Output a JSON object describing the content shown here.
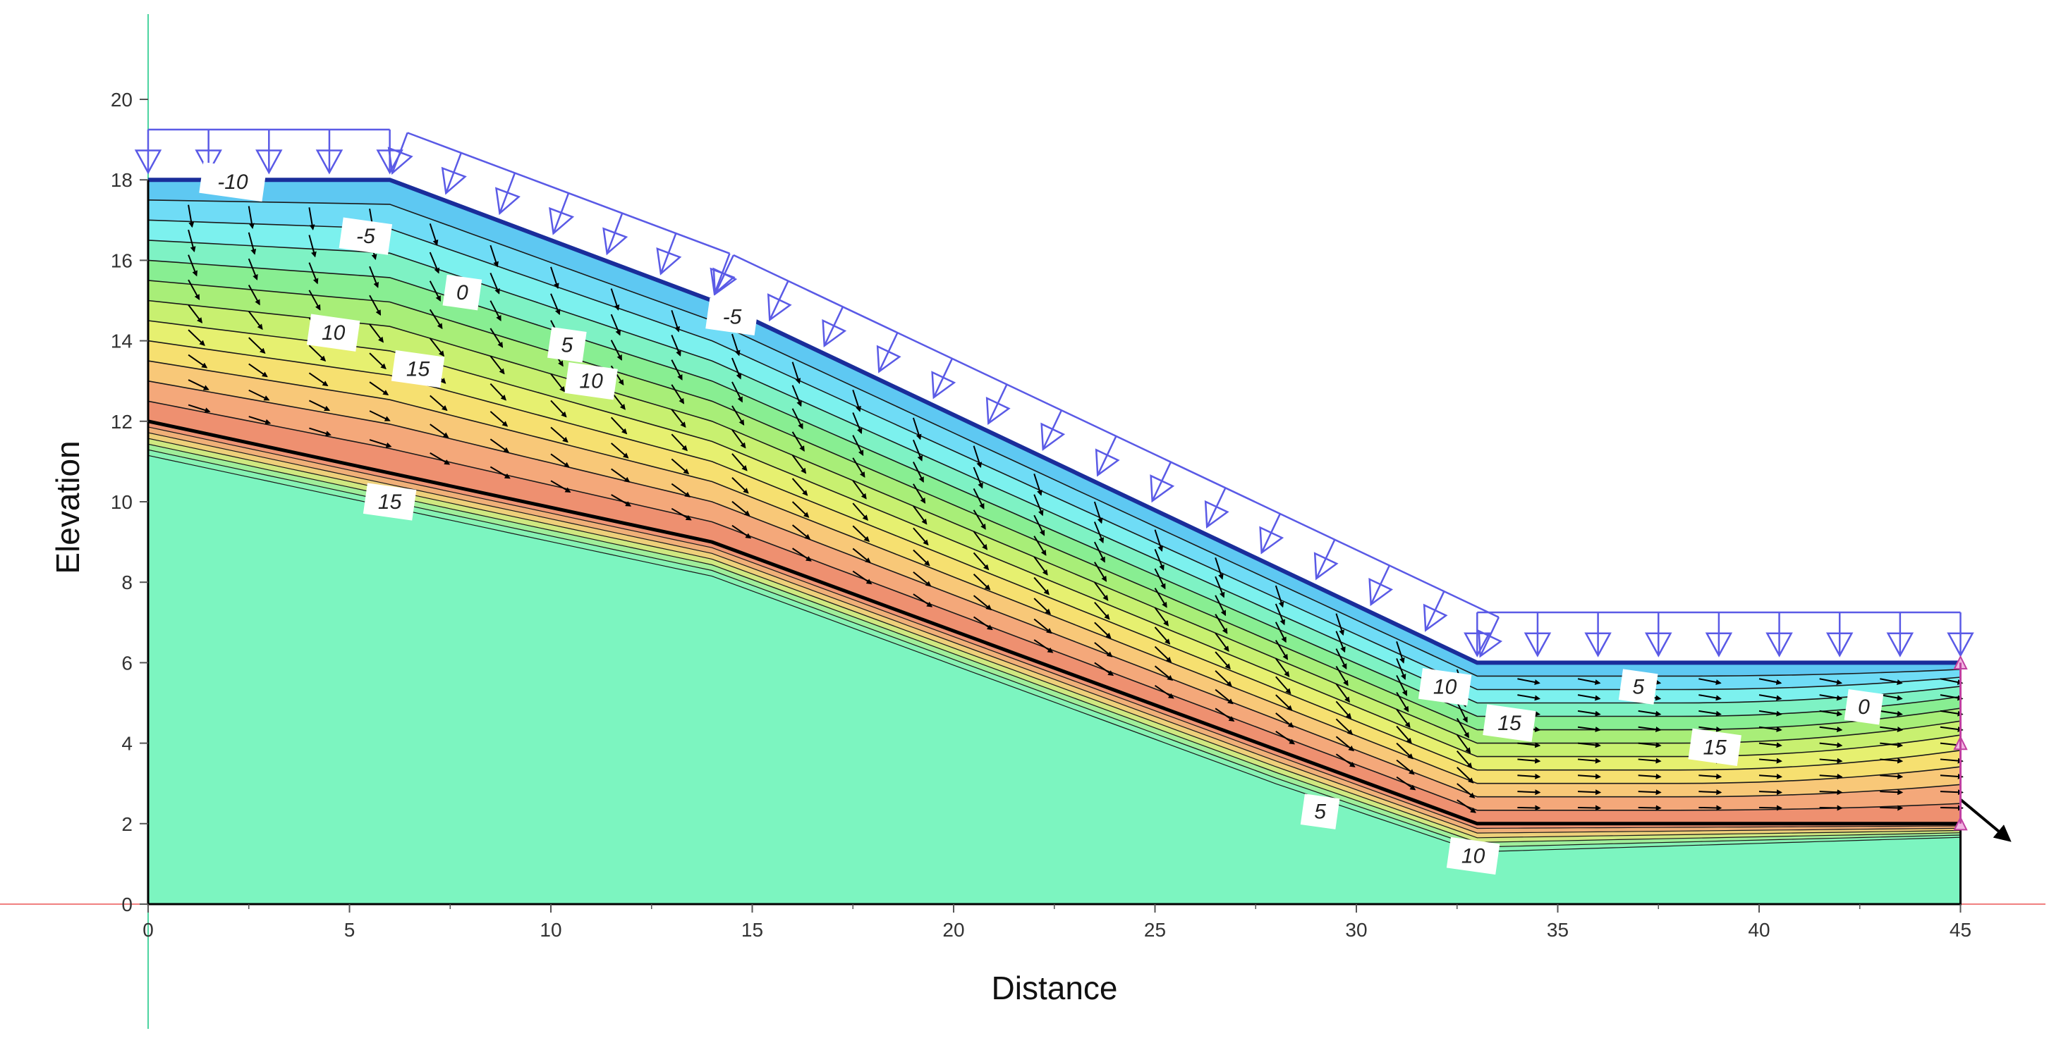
{
  "chart_data": {
    "type": "contour",
    "xlabel": "Distance",
    "ylabel": "Elevation",
    "xlim": [
      0,
      45
    ],
    "ylim": [
      0,
      20
    ],
    "x_ticks": [
      "0",
      "5",
      "10",
      "15",
      "20",
      "25",
      "30",
      "35",
      "40",
      "45"
    ],
    "y_ticks": [
      "0",
      "2",
      "4",
      "6",
      "8",
      "10",
      "12",
      "14",
      "16",
      "18",
      "20"
    ],
    "ground_surface": [
      [
        0,
        18
      ],
      [
        6,
        18
      ],
      [
        14,
        15
      ],
      [
        33,
        6
      ],
      [
        45,
        6
      ],
      [
        45,
        0
      ],
      [
        0,
        0
      ]
    ],
    "material_boundary": [
      [
        0,
        12
      ],
      [
        14,
        9
      ],
      [
        33,
        2
      ],
      [
        45,
        2
      ]
    ],
    "contour_labels": [
      {
        "text": "-10",
        "x": 2.1,
        "y": 17.95
      },
      {
        "text": "-5",
        "x": 5.4,
        "y": 16.6
      },
      {
        "text": "0",
        "x": 7.8,
        "y": 15.2
      },
      {
        "text": "10",
        "x": 4.6,
        "y": 14.2
      },
      {
        "text": "5",
        "x": 10.4,
        "y": 13.9
      },
      {
        "text": "15",
        "x": 6.7,
        "y": 13.3
      },
      {
        "text": "10",
        "x": 11.0,
        "y": 13.0
      },
      {
        "text": "-5",
        "x": 14.5,
        "y": 14.6
      },
      {
        "text": "15",
        "x": 6.0,
        "y": 10.0
      },
      {
        "text": "10",
        "x": 32.2,
        "y": 5.4
      },
      {
        "text": "15",
        "x": 33.8,
        "y": 4.5
      },
      {
        "text": "5",
        "x": 37.0,
        "y": 5.4
      },
      {
        "text": "0",
        "x": 42.6,
        "y": 4.9
      },
      {
        "text": "15",
        "x": 38.9,
        "y": 3.9
      },
      {
        "text": "5",
        "x": 29.1,
        "y": 2.3
      },
      {
        "text": "10",
        "x": 32.9,
        "y": 1.2
      }
    ],
    "boundary_condition": "infiltration load on ground surface"
  },
  "colors": {
    "surface_line": "#1a2d9a",
    "load_arrows": "#5a5ae6",
    "base_soil": "#7cf5c0",
    "axis_x_line": "#f08080",
    "axis_y_line": "#4cd4a0"
  }
}
